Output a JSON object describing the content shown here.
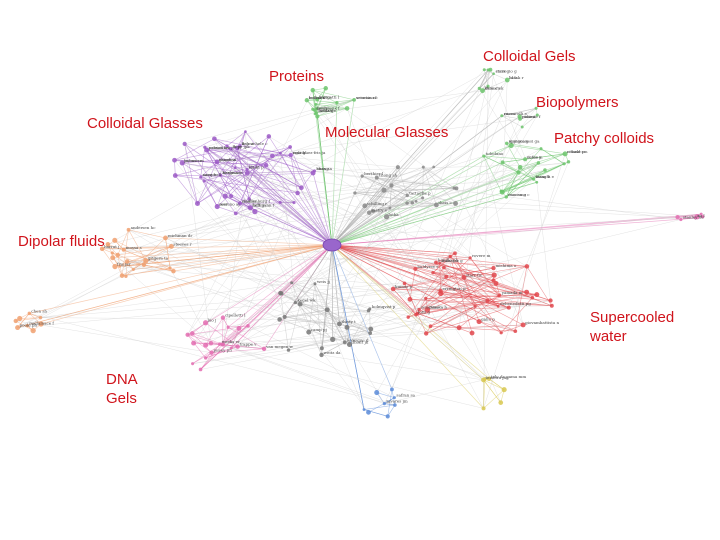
{
  "colors": {
    "label": "#d0141c",
    "edge_gray": "#b9b9b9",
    "purple": "#9b59c6",
    "red": "#e0474c",
    "green": "#6cc46c",
    "pink": "#e36cb0",
    "blue": "#5b8bd8",
    "orange": "#f0a070",
    "yellow": "#d8c850",
    "hub": "#9966cc"
  },
  "clusters": [
    {
      "id": "colloidal-gels",
      "label": "Colloidal Gels",
      "color": "green"
    },
    {
      "id": "proteins",
      "label": "Proteins",
      "color": "green"
    },
    {
      "id": "biopolymers",
      "label": "Biopolymers",
      "color": "green"
    },
    {
      "id": "colloidal-glasses",
      "label": "Colloidal Glasses",
      "color": "purple"
    },
    {
      "id": "molecular-glasses",
      "label": "Molecular Glasses",
      "color": "purple"
    },
    {
      "id": "patchy-colloids",
      "label": "Patchy colloids",
      "color": "green"
    },
    {
      "id": "dipolar-fluids",
      "label": "Dipolar fluids",
      "color": "orange"
    },
    {
      "id": "supercooled-water",
      "label": "Supercooled water",
      "color": "red"
    },
    {
      "id": "dna-gels",
      "label": "DNA Gels",
      "color": "pink"
    }
  ],
  "node_labels": [
    "lu b",
    "kumar sk",
    "corsegio g",
    "sciortino f",
    "mossa a",
    "laudahl",
    "cardinaux f",
    "buzza",
    "puliesi",
    "zaccarelli e",
    "foffi g",
    "bergmans",
    "eliert p",
    "kob w",
    "chelius",
    "lu pj",
    "zhang",
    "chauhan",
    "campbell",
    "palma vm",
    "seer",
    "prasad ka",
    "rodriguez-fris ja",
    "o'toole p",
    "caccamo c",
    "appignanesi ga",
    "bianchi e",
    "russo j",
    "toledano",
    "latka",
    "chong sh",
    "sastry s",
    "berthier l",
    "schilling r",
    "theis c",
    "tartaglia p",
    "barrat j",
    "andersen hc",
    "steeves r",
    "mossa s",
    "reichman dr",
    "grigera ta",
    "fris jar",
    "mallamace f",
    "chen sh",
    "poole ph",
    "stanley he",
    "xu l",
    "kumar p",
    "buldyrev s",
    "franzese g",
    "starr fw",
    "sciortino",
    "debenedetti pg",
    "errington jr",
    "mishima o",
    "giovambattista n",
    "handle ph",
    "yamada m",
    "gallo p",
    "rovere m",
    "lotti g",
    "tanaka h",
    "luo j",
    "weeks er",
    "pusey pn",
    "van megen w",
    "cipelletti l",
    "trappe v",
    "weitz da",
    "kegel wk",
    "holmqvist p",
    "dhont jk",
    "camp pj",
    "weis jj",
    "levesque d",
    "tlusty t",
    "safran sa",
    "tavares jm",
    "teixeira pig",
    "telo da gama mm",
    "blaak r",
    "likos cn",
    "starr",
    "seeman nc",
    "bellini t",
    "fadda ge",
    "largo j",
    "rovigatti l",
    "romano f",
    "russo",
    "hoffmann f",
    "kozlova v",
    "liu h",
    "de michele c",
    "smallenburg f",
    "doye jpk",
    "louis aa",
    "geiger a",
    "nave e",
    "la nave e",
    "moreno aj",
    "colmenero j",
    "ngai kl",
    "roland cm",
    "ruocco g",
    "monaco g",
    "wang h",
    "sofos m"
  ]
}
